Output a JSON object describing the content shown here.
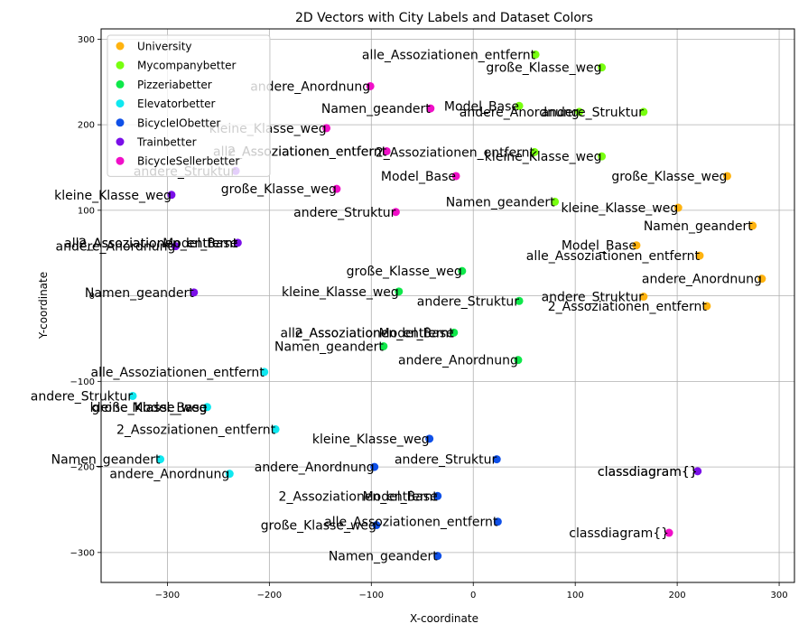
{
  "chart_data": {
    "type": "scatter",
    "title": "2D Vectors with City Labels and Dataset Colors",
    "xlabel": "X-coordinate",
    "ylabel": "Y-coordinate",
    "xlim": [
      -365,
      315
    ],
    "ylim": [
      -335,
      312
    ],
    "xticks": [
      -300,
      -200,
      -100,
      0,
      100,
      200,
      300
    ],
    "yticks": [
      -300,
      -200,
      -100,
      0,
      100,
      200,
      300
    ],
    "xtick_labels": [
      "−300",
      "−200",
      "−100",
      "0",
      "100",
      "200",
      "300"
    ],
    "ytick_labels": [
      "−300",
      "−200",
      "−100",
      "0",
      "100",
      "200",
      "300"
    ],
    "grid": true,
    "legend_position": "top-left",
    "series": [
      {
        "name": "University",
        "color": "#ffb30f",
        "points": [
          {
            "x": 249,
            "y": 140,
            "label": "große_Klasse_weg"
          },
          {
            "x": 201,
            "y": 103,
            "label": "kleine_Klasse_weg"
          },
          {
            "x": 274,
            "y": 82,
            "label": "Namen_geandert"
          },
          {
            "x": 160,
            "y": 59,
            "label": "Model_Base"
          },
          {
            "x": 222,
            "y": 47,
            "label": "alle_Assoziationen_entfernt"
          },
          {
            "x": 283,
            "y": 20,
            "label": "andere_Anordnung"
          },
          {
            "x": 167,
            "y": -1,
            "label": "andere_Struktur"
          },
          {
            "x": 229,
            "y": -12,
            "label": "2_Assoziationen_entfernt"
          }
        ]
      },
      {
        "name": "Mycompanybetter",
        "color": "#78ff0f",
        "points": [
          {
            "x": 61,
            "y": 282,
            "label": "alle_Assoziationen_entfernt"
          },
          {
            "x": 126,
            "y": 267,
            "label": "große_Klasse_weg"
          },
          {
            "x": 45,
            "y": 222,
            "label": "Model_Base"
          },
          {
            "x": 104,
            "y": 215,
            "label": "andere_Anordnung"
          },
          {
            "x": 167,
            "y": 215,
            "label": "andere_Struktur"
          },
          {
            "x": 60,
            "y": 168,
            "label": "2_Assoziationen_entfernt"
          },
          {
            "x": 126,
            "y": 163,
            "label": "kleine_Klasse_weg"
          },
          {
            "x": 80,
            "y": 110,
            "label": "Namen_geandert"
          }
        ]
      },
      {
        "name": "Pizzeriabetter",
        "color": "#0fe84a",
        "points": [
          {
            "x": -11,
            "y": 29,
            "label": "große_Klasse_weg"
          },
          {
            "x": -73,
            "y": 5,
            "label": "kleine_Klasse_weg"
          },
          {
            "x": 45,
            "y": -6,
            "label": "andere_Struktur"
          },
          {
            "x": -19,
            "y": -43,
            "label": "Model_Base"
          },
          {
            "x": -88,
            "y": -59,
            "label": "Namen_geandert"
          },
          {
            "x": 44,
            "y": -75,
            "label": "andere_Anordnung"
          }
        ]
      },
      {
        "name": "Elevatorbetter",
        "color": "#0fe8f0",
        "points": [
          {
            "x": -205,
            "y": -89,
            "label": "alle_Assoziationen_entfernt"
          },
          {
            "x": -334,
            "y": -117,
            "label": "andere_Struktur"
          },
          {
            "x": -261,
            "y": -130,
            "label": "große_Klasse_weg"
          },
          {
            "x": -194,
            "y": -156,
            "label": "2_Assoziationen_entfernt"
          },
          {
            "x": -307,
            "y": -191,
            "label": "Namen_geandert"
          },
          {
            "x": -239,
            "y": -208,
            "label": "andere_Anordnung"
          }
        ]
      },
      {
        "name": "BicycleIObetter",
        "color": "#0f50e8",
        "points": [
          {
            "x": -43,
            "y": -167,
            "label": "kleine_Klasse_weg"
          },
          {
            "x": 23,
            "y": -191,
            "label": "andere_Struktur"
          },
          {
            "x": -97,
            "y": -200,
            "label": "andere_Anordnung"
          },
          {
            "x": -35,
            "y": -234,
            "label": "Model_Base"
          },
          {
            "x": 24,
            "y": -264,
            "label": "alle_Assoziationen_entfernt"
          },
          {
            "x": -95,
            "y": -268,
            "label": "große_Klasse_weg"
          },
          {
            "x": -35,
            "y": -304,
            "label": "Namen_geandert"
          }
        ]
      },
      {
        "name": "Trainbetter",
        "color": "#7a0fe8",
        "points": [
          {
            "x": -233,
            "y": 146,
            "label": "andere_Struktur"
          },
          {
            "x": -296,
            "y": 118,
            "label": "kleine_Klasse_weg"
          },
          {
            "x": -231,
            "y": 62,
            "label": "Model_Base"
          },
          {
            "x": -292,
            "y": 58,
            "label": "andere_Anordnung"
          },
          {
            "x": -274,
            "y": 4,
            "label": "Namen_geandert"
          },
          {
            "x": 220,
            "y": -205,
            "label": "classdiagram{}"
          }
        ]
      },
      {
        "name": "BicycleSellerbetter",
        "color": "#f00fc8",
        "points": [
          {
            "x": -101,
            "y": 245,
            "label": "andere_Anordnung"
          },
          {
            "x": -42,
            "y": 219,
            "label": "Namen_geandert"
          },
          {
            "x": -144,
            "y": 196,
            "label": "kleine_Klasse_weg"
          },
          {
            "x": -85,
            "y": 169,
            "label": "alle_Assoziationen_entfernt"
          },
          {
            "x": -17,
            "y": 140,
            "label": "Model_Base"
          },
          {
            "x": -134,
            "y": 125,
            "label": "große_Klasse_weg"
          },
          {
            "x": -76,
            "y": 98,
            "label": "andere_Struktur"
          },
          {
            "x": 192,
            "y": -277,
            "label": "classdiagram{}"
          }
        ]
      }
    ],
    "extra_labels": [
      {
        "x": -85,
        "y": 169,
        "label": "2_Assoziationen_entfernt",
        "color": "#000000"
      },
      {
        "x": -231,
        "y": 62,
        "label": "alle_Assoziationen_entfernt",
        "color": "#000000"
      },
      {
        "x": -231,
        "y": 62,
        "label": "2_Assoziationen_entfernt",
        "color": "#000000"
      },
      {
        "x": -19,
        "y": -43,
        "label": "alle_Assoziationen_entfernt",
        "color": "#000000"
      },
      {
        "x": -19,
        "y": -43,
        "label": "2_Assoziationen_entfernt",
        "color": "#000000"
      },
      {
        "x": -261,
        "y": -130,
        "label": "kleine_Klasse_weg",
        "color": "#000000"
      },
      {
        "x": -261,
        "y": -130,
        "label": "Model_Base",
        "color": "#000000"
      },
      {
        "x": -35,
        "y": -234,
        "label": "2_Assoziationen_entfernt",
        "color": "#000000"
      },
      {
        "x": 220,
        "y": -205,
        "label": "classdiagram{}",
        "color": "#000000"
      }
    ]
  }
}
